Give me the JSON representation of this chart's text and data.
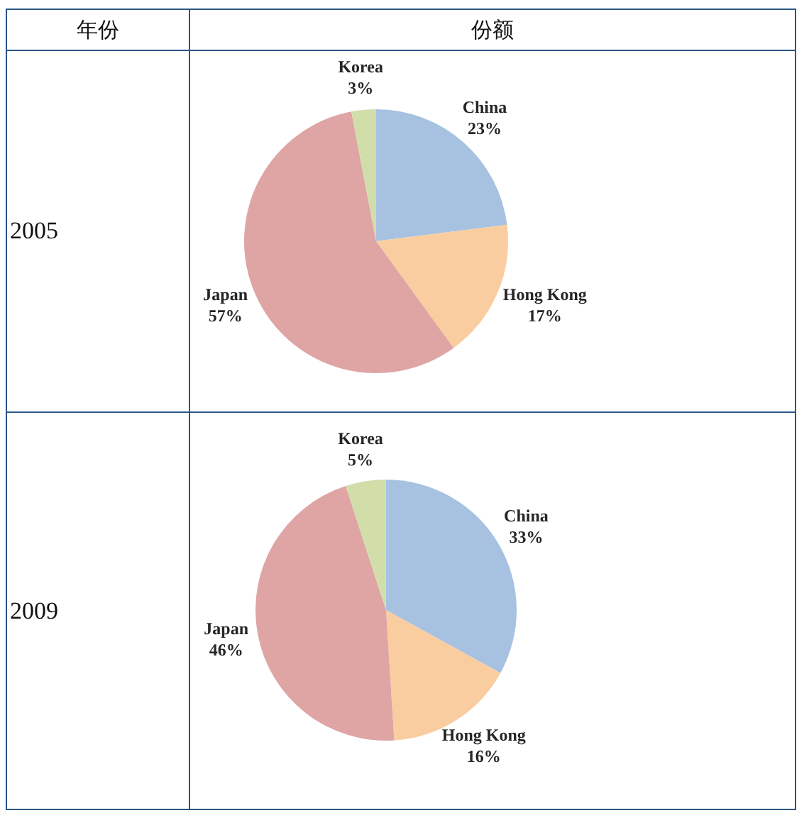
{
  "chart_data": [
    {
      "type": "other",
      "annotations": [
        "年份",
        "份额"
      ]
    },
    {
      "type": "pie",
      "title": "2005",
      "categories": [
        "China",
        "Hong Kong",
        "Japan",
        "Korea"
      ],
      "values": [
        23,
        17,
        57,
        3
      ],
      "colors": [
        "#a7c2e0",
        "#facda0",
        "#dea5a4",
        "#d2deaa"
      ],
      "value_labels": [
        "23%",
        "17%",
        "57%",
        "3%"
      ]
    },
    {
      "type": "pie",
      "title": "2009",
      "categories": [
        "China",
        "Hong Kong",
        "Japan",
        "Korea"
      ],
      "values": [
        33,
        16,
        46,
        5
      ],
      "colors": [
        "#a7c2e0",
        "#facda0",
        "#dea5a4",
        "#d2deaa"
      ],
      "value_labels": [
        "33%",
        "16%",
        "46%",
        "5%"
      ]
    }
  ]
}
